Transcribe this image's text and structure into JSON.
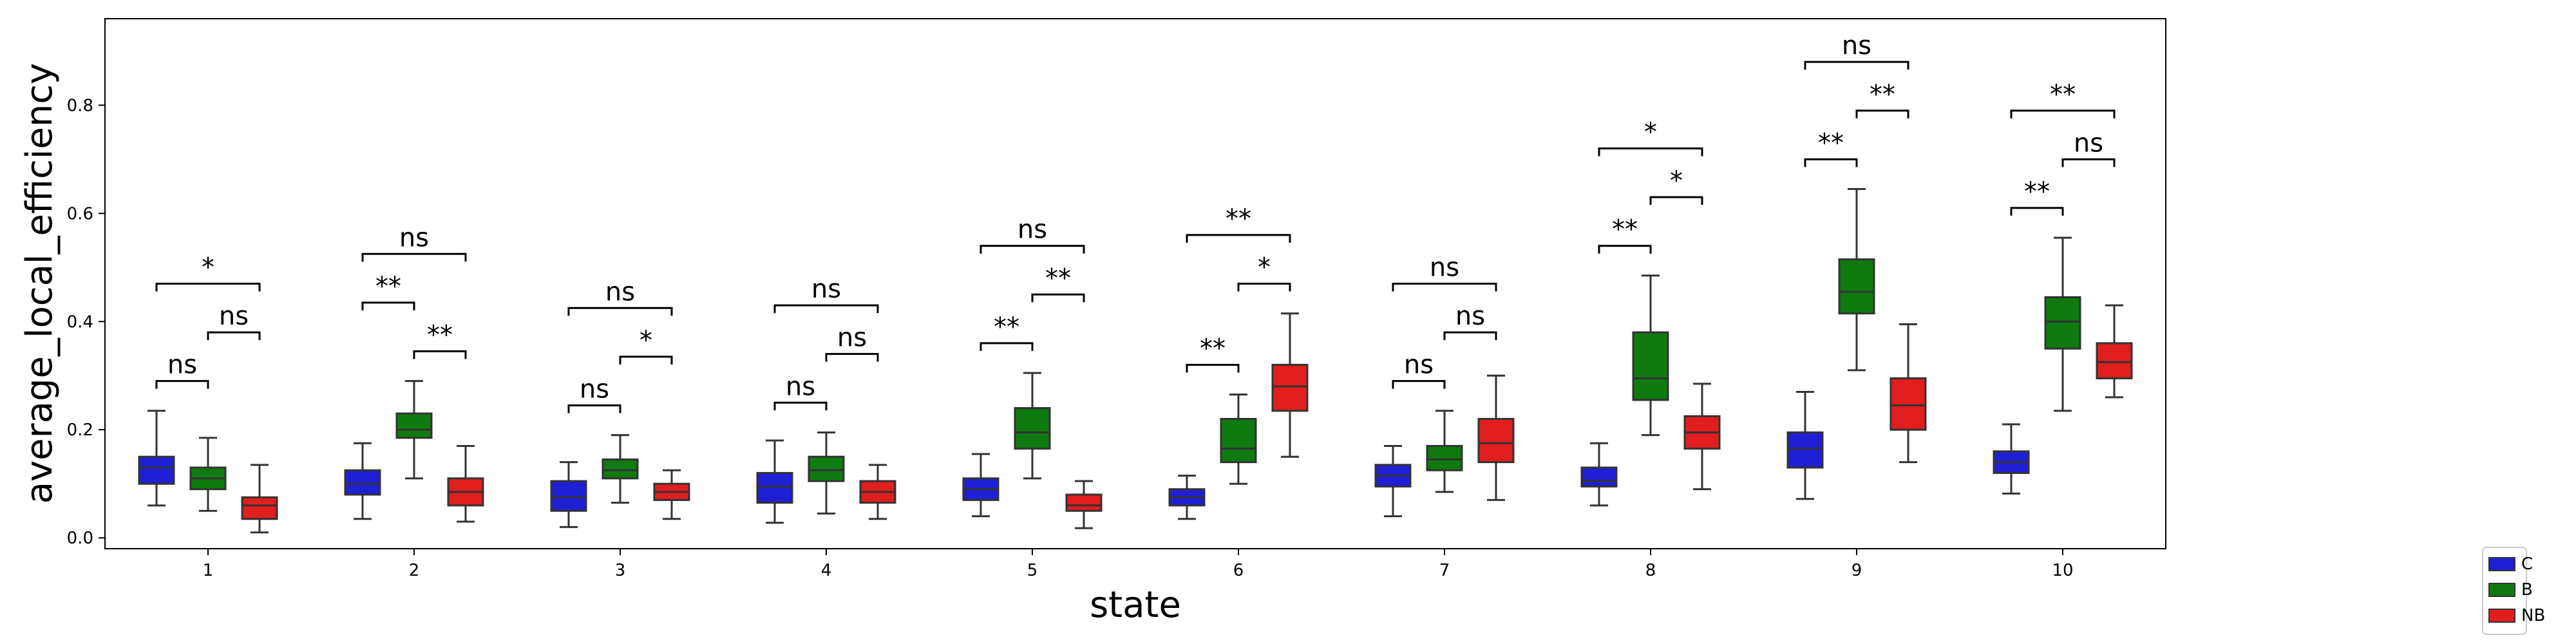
{
  "chart_data": {
    "type": "box",
    "xlabel": "state",
    "ylabel": "average_local_efficiency",
    "categories": [
      "1",
      "2",
      "3",
      "4",
      "5",
      "6",
      "7",
      "8",
      "9",
      "10"
    ],
    "ylim": [
      -0.02,
      0.96
    ],
    "yticks": [
      "0.0",
      "0.2",
      "0.4",
      "0.6",
      "0.8"
    ],
    "ytick_values": [
      0.0,
      0.2,
      0.4,
      0.6,
      0.8
    ],
    "grid": false,
    "legend_position": "lower-right outside",
    "series": [
      {
        "name": "C",
        "color": "#1f1fd6",
        "boxes": [
          {
            "whislo": 0.06,
            "q1": 0.1,
            "med": 0.13,
            "q3": 0.15,
            "whishi": 0.235
          },
          {
            "whislo": 0.035,
            "q1": 0.08,
            "med": 0.1,
            "q3": 0.125,
            "whishi": 0.175
          },
          {
            "whislo": 0.02,
            "q1": 0.05,
            "med": 0.075,
            "q3": 0.105,
            "whishi": 0.14
          },
          {
            "whislo": 0.028,
            "q1": 0.065,
            "med": 0.095,
            "q3": 0.12,
            "whishi": 0.18
          },
          {
            "whislo": 0.04,
            "q1": 0.07,
            "med": 0.09,
            "q3": 0.11,
            "whishi": 0.155
          },
          {
            "whislo": 0.035,
            "q1": 0.06,
            "med": 0.075,
            "q3": 0.09,
            "whishi": 0.115
          },
          {
            "whislo": 0.04,
            "q1": 0.095,
            "med": 0.115,
            "q3": 0.135,
            "whishi": 0.17
          },
          {
            "whislo": 0.06,
            "q1": 0.095,
            "med": 0.105,
            "q3": 0.13,
            "whishi": 0.175
          },
          {
            "whislo": 0.072,
            "q1": 0.13,
            "med": 0.165,
            "q3": 0.195,
            "whishi": 0.27
          },
          {
            "whislo": 0.082,
            "q1": 0.12,
            "med": 0.14,
            "q3": 0.16,
            "whishi": 0.21
          }
        ]
      },
      {
        "name": "B",
        "color": "#0f7a0f",
        "boxes": [
          {
            "whislo": 0.05,
            "q1": 0.09,
            "med": 0.11,
            "q3": 0.13,
            "whishi": 0.185
          },
          {
            "whislo": 0.11,
            "q1": 0.185,
            "med": 0.2,
            "q3": 0.23,
            "whishi": 0.29
          },
          {
            "whislo": 0.065,
            "q1": 0.11,
            "med": 0.125,
            "q3": 0.145,
            "whishi": 0.19
          },
          {
            "whislo": 0.045,
            "q1": 0.105,
            "med": 0.125,
            "q3": 0.15,
            "whishi": 0.195
          },
          {
            "whislo": 0.11,
            "q1": 0.165,
            "med": 0.195,
            "q3": 0.24,
            "whishi": 0.305
          },
          {
            "whislo": 0.1,
            "q1": 0.14,
            "med": 0.165,
            "q3": 0.22,
            "whishi": 0.265
          },
          {
            "whislo": 0.085,
            "q1": 0.125,
            "med": 0.145,
            "q3": 0.17,
            "whishi": 0.235
          },
          {
            "whislo": 0.19,
            "q1": 0.255,
            "med": 0.295,
            "q3": 0.38,
            "whishi": 0.485
          },
          {
            "whislo": 0.31,
            "q1": 0.415,
            "med": 0.455,
            "q3": 0.515,
            "whishi": 0.645
          },
          {
            "whislo": 0.235,
            "q1": 0.35,
            "med": 0.4,
            "q3": 0.445,
            "whishi": 0.555
          }
        ]
      },
      {
        "name": "NB",
        "color": "#e01e1e",
        "boxes": [
          {
            "whislo": 0.01,
            "q1": 0.035,
            "med": 0.06,
            "q3": 0.075,
            "whishi": 0.135
          },
          {
            "whislo": 0.03,
            "q1": 0.06,
            "med": 0.085,
            "q3": 0.11,
            "whishi": 0.17
          },
          {
            "whislo": 0.035,
            "q1": 0.07,
            "med": 0.085,
            "q3": 0.1,
            "whishi": 0.125
          },
          {
            "whislo": 0.035,
            "q1": 0.065,
            "med": 0.085,
            "q3": 0.105,
            "whishi": 0.135
          },
          {
            "whislo": 0.018,
            "q1": 0.05,
            "med": 0.06,
            "q3": 0.08,
            "whishi": 0.105
          },
          {
            "whislo": 0.15,
            "q1": 0.235,
            "med": 0.28,
            "q3": 0.32,
            "whishi": 0.415
          },
          {
            "whislo": 0.07,
            "q1": 0.14,
            "med": 0.175,
            "q3": 0.22,
            "whishi": 0.3
          },
          {
            "whislo": 0.09,
            "q1": 0.165,
            "med": 0.195,
            "q3": 0.225,
            "whishi": 0.285
          },
          {
            "whislo": 0.14,
            "q1": 0.2,
            "med": 0.245,
            "q3": 0.295,
            "whishi": 0.395
          },
          {
            "whislo": 0.26,
            "q1": 0.295,
            "med": 0.325,
            "q3": 0.36,
            "whishi": 0.43
          }
        ]
      }
    ],
    "annotations": [
      {
        "category": 0,
        "from": "C",
        "to": "B",
        "y": 0.29,
        "text": "ns"
      },
      {
        "category": 0,
        "from": "B",
        "to": "NB",
        "y": 0.38,
        "text": "ns"
      },
      {
        "category": 0,
        "from": "C",
        "to": "NB",
        "y": 0.47,
        "text": "*"
      },
      {
        "category": 1,
        "from": "B",
        "to": "NB",
        "y": 0.345,
        "text": "**"
      },
      {
        "category": 1,
        "from": "C",
        "to": "B",
        "y": 0.435,
        "text": "**"
      },
      {
        "category": 1,
        "from": "C",
        "to": "NB",
        "y": 0.525,
        "text": "ns"
      },
      {
        "category": 2,
        "from": "C",
        "to": "B",
        "y": 0.245,
        "text": "ns"
      },
      {
        "category": 2,
        "from": "B",
        "to": "NB",
        "y": 0.335,
        "text": "*"
      },
      {
        "category": 2,
        "from": "C",
        "to": "NB",
        "y": 0.425,
        "text": "ns"
      },
      {
        "category": 3,
        "from": "C",
        "to": "B",
        "y": 0.25,
        "text": "ns"
      },
      {
        "category": 3,
        "from": "B",
        "to": "NB",
        "y": 0.34,
        "text": "ns"
      },
      {
        "category": 3,
        "from": "C",
        "to": "NB",
        "y": 0.43,
        "text": "ns"
      },
      {
        "category": 4,
        "from": "C",
        "to": "B",
        "y": 0.36,
        "text": "**"
      },
      {
        "category": 4,
        "from": "B",
        "to": "NB",
        "y": 0.45,
        "text": "**"
      },
      {
        "category": 4,
        "from": "C",
        "to": "NB",
        "y": 0.54,
        "text": "ns"
      },
      {
        "category": 5,
        "from": "C",
        "to": "B",
        "y": 0.32,
        "text": "**"
      },
      {
        "category": 5,
        "from": "B",
        "to": "NB",
        "y": 0.47,
        "text": "*"
      },
      {
        "category": 5,
        "from": "C",
        "to": "NB",
        "y": 0.56,
        "text": "**"
      },
      {
        "category": 6,
        "from": "C",
        "to": "B",
        "y": 0.29,
        "text": "ns"
      },
      {
        "category": 6,
        "from": "B",
        "to": "NB",
        "y": 0.38,
        "text": "ns"
      },
      {
        "category": 6,
        "from": "C",
        "to": "NB",
        "y": 0.47,
        "text": "ns"
      },
      {
        "category": 7,
        "from": "C",
        "to": "B",
        "y": 0.54,
        "text": "**"
      },
      {
        "category": 7,
        "from": "B",
        "to": "NB",
        "y": 0.63,
        "text": "*"
      },
      {
        "category": 7,
        "from": "C",
        "to": "NB",
        "y": 0.72,
        "text": "*"
      },
      {
        "category": 8,
        "from": "C",
        "to": "B",
        "y": 0.7,
        "text": "**"
      },
      {
        "category": 8,
        "from": "B",
        "to": "NB",
        "y": 0.79,
        "text": "**"
      },
      {
        "category": 8,
        "from": "C",
        "to": "NB",
        "y": 0.88,
        "text": "ns"
      },
      {
        "category": 9,
        "from": "C",
        "to": "B",
        "y": 0.61,
        "text": "**"
      },
      {
        "category": 9,
        "from": "B",
        "to": "NB",
        "y": 0.7,
        "text": "ns"
      },
      {
        "category": 9,
        "from": "C",
        "to": "NB",
        "y": 0.79,
        "text": "**"
      }
    ]
  }
}
